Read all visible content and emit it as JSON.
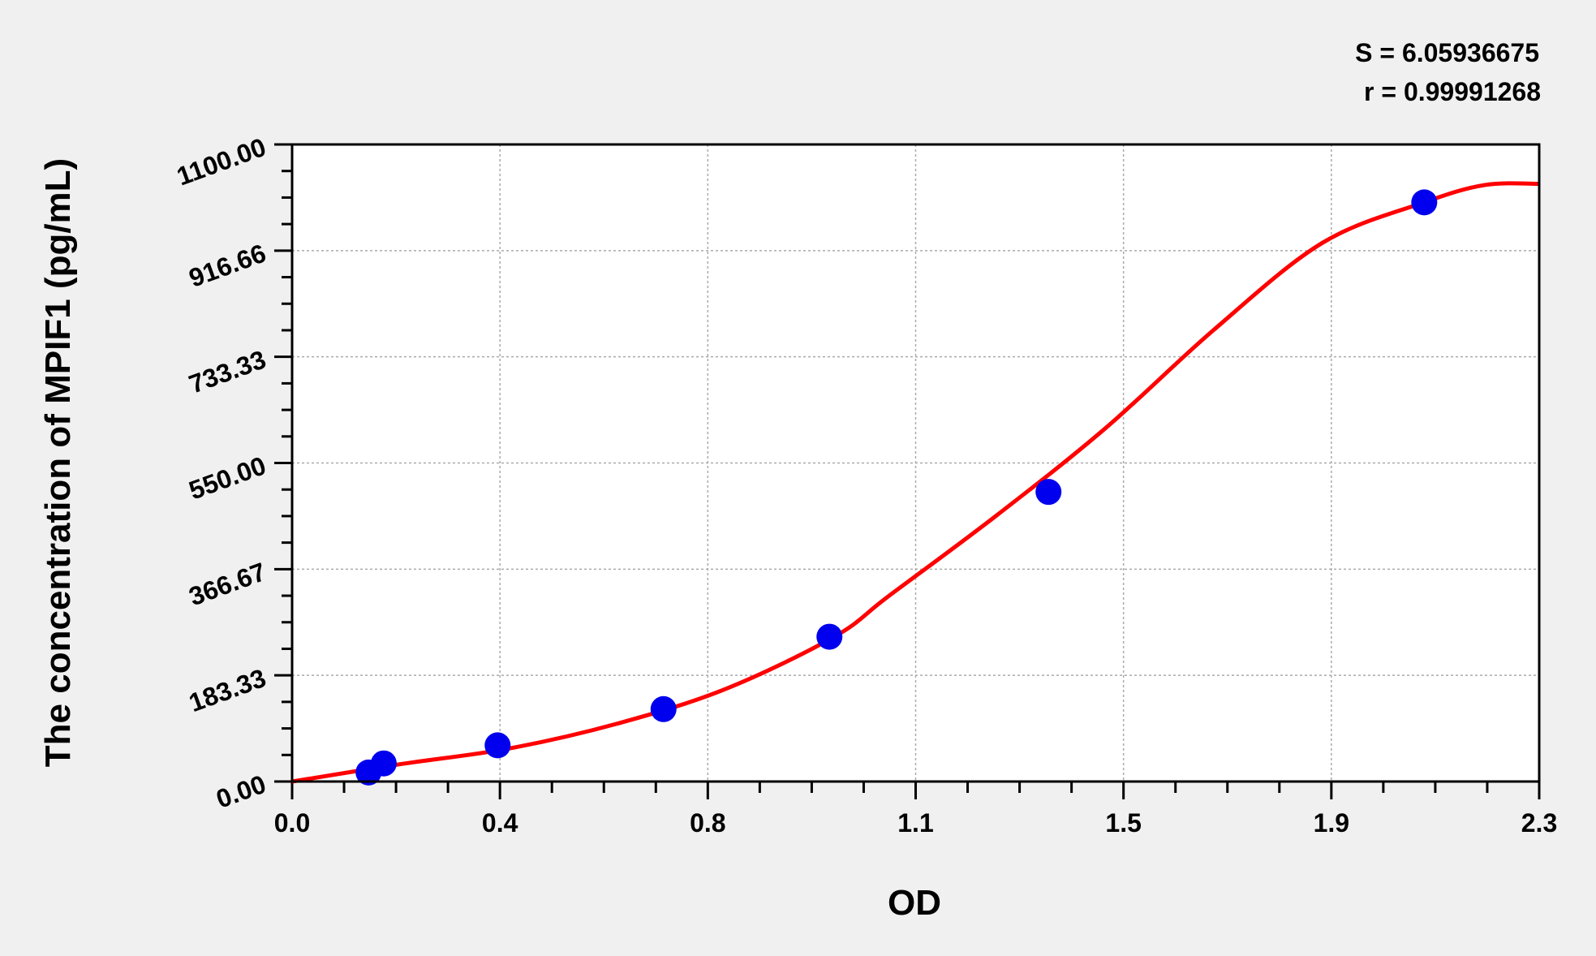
{
  "chart_data": {
    "type": "scatter",
    "xlabel": "OD",
    "ylabel": "The concentration of  MPIF1 (pg/mL)",
    "xlim": [
      0,
      2.3
    ],
    "ylim": [
      0,
      1100
    ],
    "x_ticks": [
      "0.0",
      "0.4",
      "0.8",
      "1.1",
      "1.5",
      "1.9",
      "2.3"
    ],
    "y_ticks": [
      "0.00",
      "183.33",
      "366.67",
      "550.00",
      "733.33",
      "916.66",
      "1100.00"
    ],
    "grid": true,
    "annotations": [
      "S = 6.05936675",
      "r = 0.99991268"
    ],
    "points": {
      "x": [
        0.141,
        0.169,
        0.379,
        0.685,
        0.991,
        1.395,
        2.088
      ],
      "y": [
        15.6,
        31.25,
        62.5,
        125,
        250,
        500,
        1000
      ],
      "color": "#0000ee"
    },
    "fit_curve": {
      "x": [
        0,
        0.2,
        0.4,
        0.6,
        0.8,
        1.0,
        1.1,
        1.3,
        1.5,
        1.7,
        1.9,
        2.088,
        2.2,
        2.3
      ],
      "y": [
        0,
        30,
        57,
        100,
        160,
        250,
        320,
        460,
        610,
        780,
        930,
        1000,
        1030,
        1032
      ],
      "color": "#ff0000"
    }
  }
}
